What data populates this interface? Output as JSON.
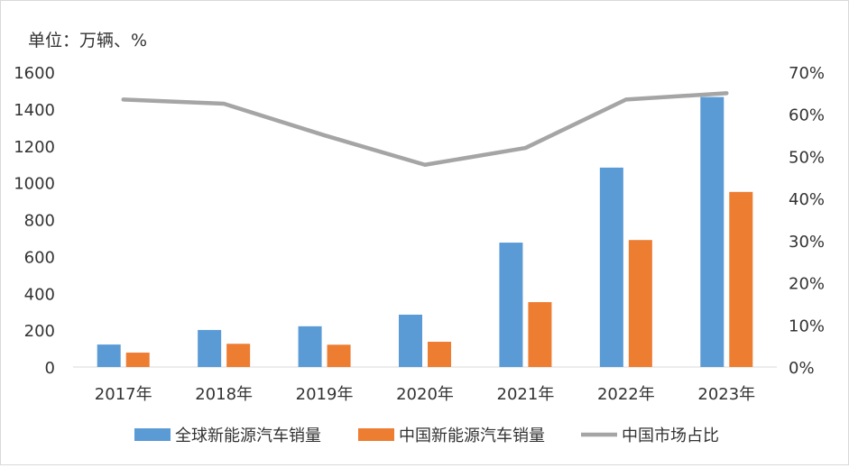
{
  "chart_data": {
    "type": "bar",
    "unit_label": "单位：万辆、%",
    "categories": [
      "2017年",
      "2018年",
      "2019年",
      "2020年",
      "2021年",
      "2022年",
      "2023年"
    ],
    "series": [
      {
        "name": "全球新能源汽车销量",
        "type": "bar",
        "axis": "left",
        "color": "#5b9bd5",
        "values": [
          122,
          201,
          221,
          284,
          675,
          1082,
          1465
        ]
      },
      {
        "name": "中国新能源汽车销量",
        "type": "bar",
        "axis": "left",
        "color": "#ed7d31",
        "values": [
          78,
          126,
          121,
          137,
          352,
          689,
          950
        ]
      },
      {
        "name": "中国市场占比",
        "type": "line",
        "axis": "right",
        "color": "#a5a5a5",
        "values": [
          63.5,
          62.5,
          55,
          48,
          52,
          63.5,
          65
        ]
      }
    ],
    "y_left": {
      "min": 0,
      "max": 1600,
      "step": 200,
      "tick_labels": [
        "0",
        "200",
        "400",
        "600",
        "800",
        "1000",
        "1200",
        "1400",
        "1600"
      ]
    },
    "y_right": {
      "min": 0,
      "max": 70,
      "step": 10,
      "tick_labels": [
        "0%",
        "10%",
        "20%",
        "30%",
        "40%",
        "50%",
        "60%",
        "70%"
      ]
    },
    "grid": false,
    "legend_position": "bottom"
  }
}
